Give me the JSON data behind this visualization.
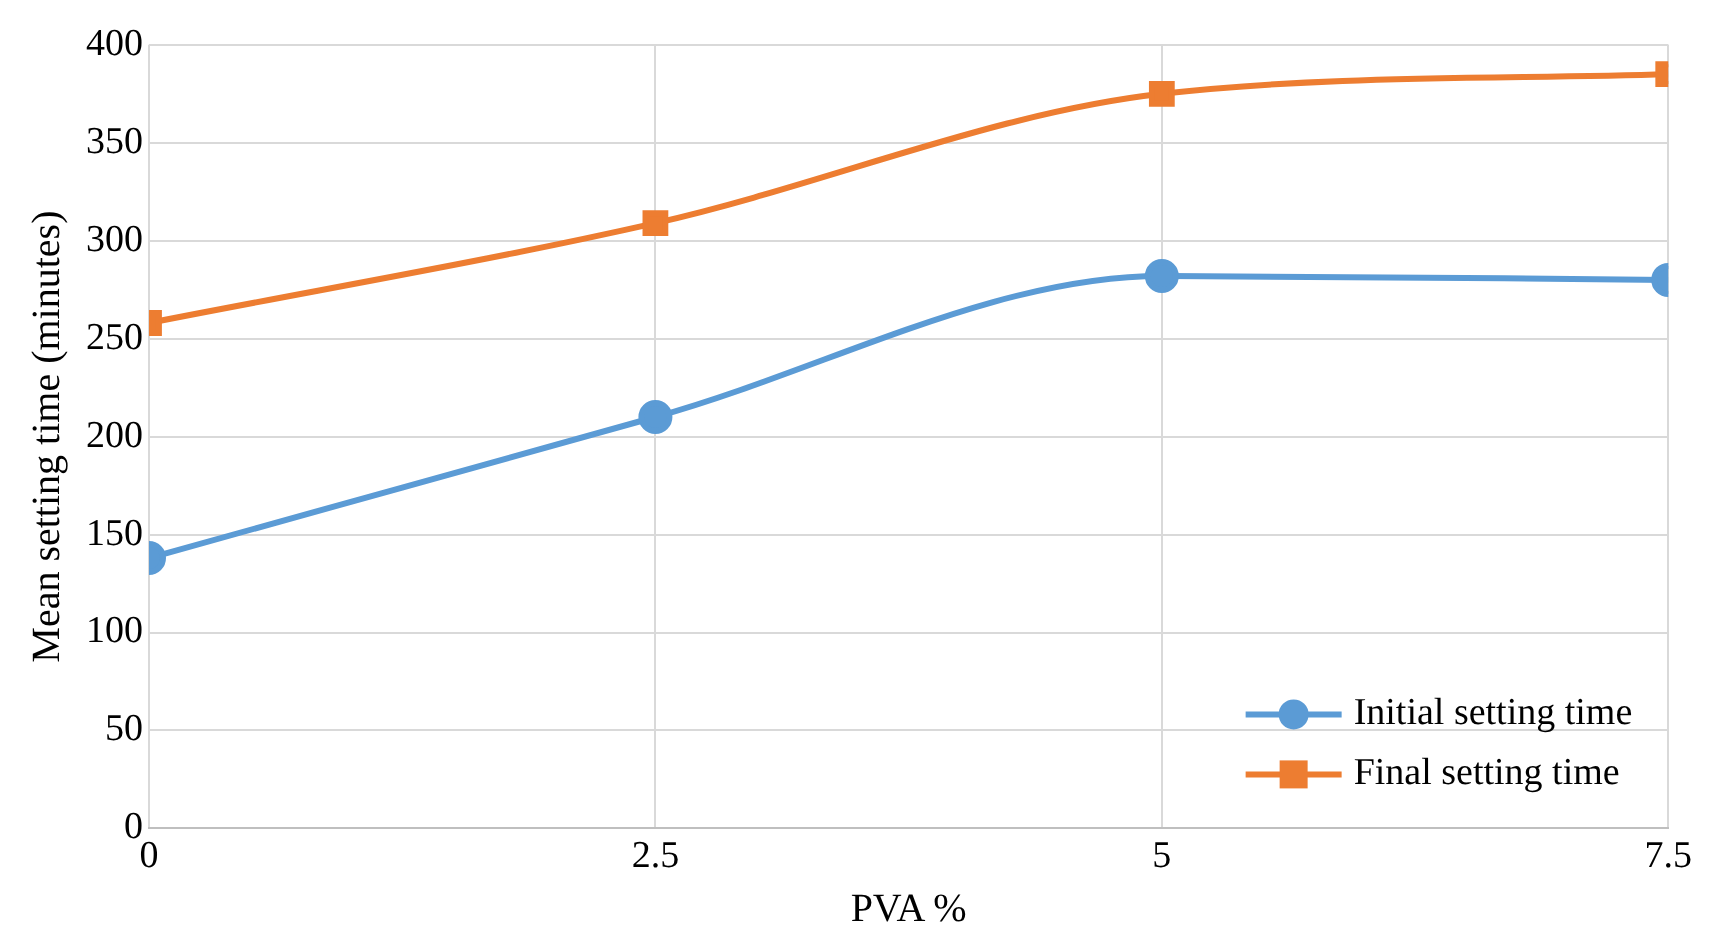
{
  "chart_data": {
    "type": "line",
    "xlabel": "PVA %",
    "ylabel": "Mean setting time (minutes)",
    "x": [
      0,
      2.5,
      5,
      7.5
    ],
    "series": [
      {
        "name": "Initial setting time",
        "color": "#5b9bd5",
        "values": [
          138,
          210,
          282,
          280
        ]
      },
      {
        "name": "Final setting time",
        "color": "#ed7d31",
        "values": [
          258,
          309,
          375,
          385
        ],
        "marker": "square"
      }
    ],
    "xlim": [
      0,
      7.5
    ],
    "xticks": [
      0,
      2.5,
      5,
      7.5
    ],
    "ylim": [
      0,
      400
    ],
    "yticks": [
      0,
      50,
      100,
      150,
      200,
      250,
      300,
      350,
      400
    ],
    "grid": true,
    "legend": "bottom right",
    "marker": "circle",
    "line_style": "solid"
  }
}
